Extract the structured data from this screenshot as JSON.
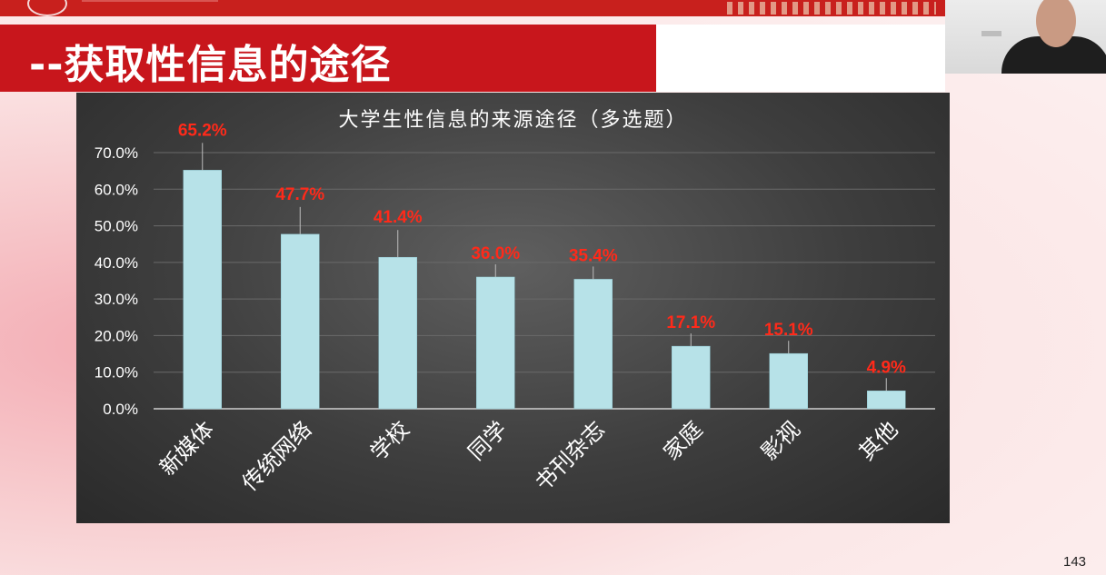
{
  "slide": {
    "heading": "--获取性信息的途径",
    "page_number": "143"
  },
  "colors": {
    "heading_bg": "#c8161c",
    "bar": "#b7e2e8",
    "value_label": "#ff2a1a",
    "chart_bg": "#3e3e3e"
  },
  "chart_data": {
    "type": "bar",
    "title": "大学生性信息的来源途径（多选题）",
    "categories": [
      "新媒体",
      "传统网络",
      "学校",
      "同学",
      "书刊杂志",
      "家庭",
      "影视",
      "其他"
    ],
    "values": [
      65.2,
      47.7,
      41.4,
      36.0,
      35.4,
      17.1,
      15.1,
      4.9
    ],
    "value_labels": [
      "65.2%",
      "47.7%",
      "41.4%",
      "36.0%",
      "35.4%",
      "17.1%",
      "15.1%",
      "4.9%"
    ],
    "y_ticks": [
      "0.0%",
      "10.0%",
      "20.0%",
      "30.0%",
      "40.0%",
      "50.0%",
      "60.0%",
      "70.0%"
    ],
    "ylim": [
      0,
      70
    ],
    "grid": true,
    "xlabel": "",
    "ylabel": ""
  }
}
